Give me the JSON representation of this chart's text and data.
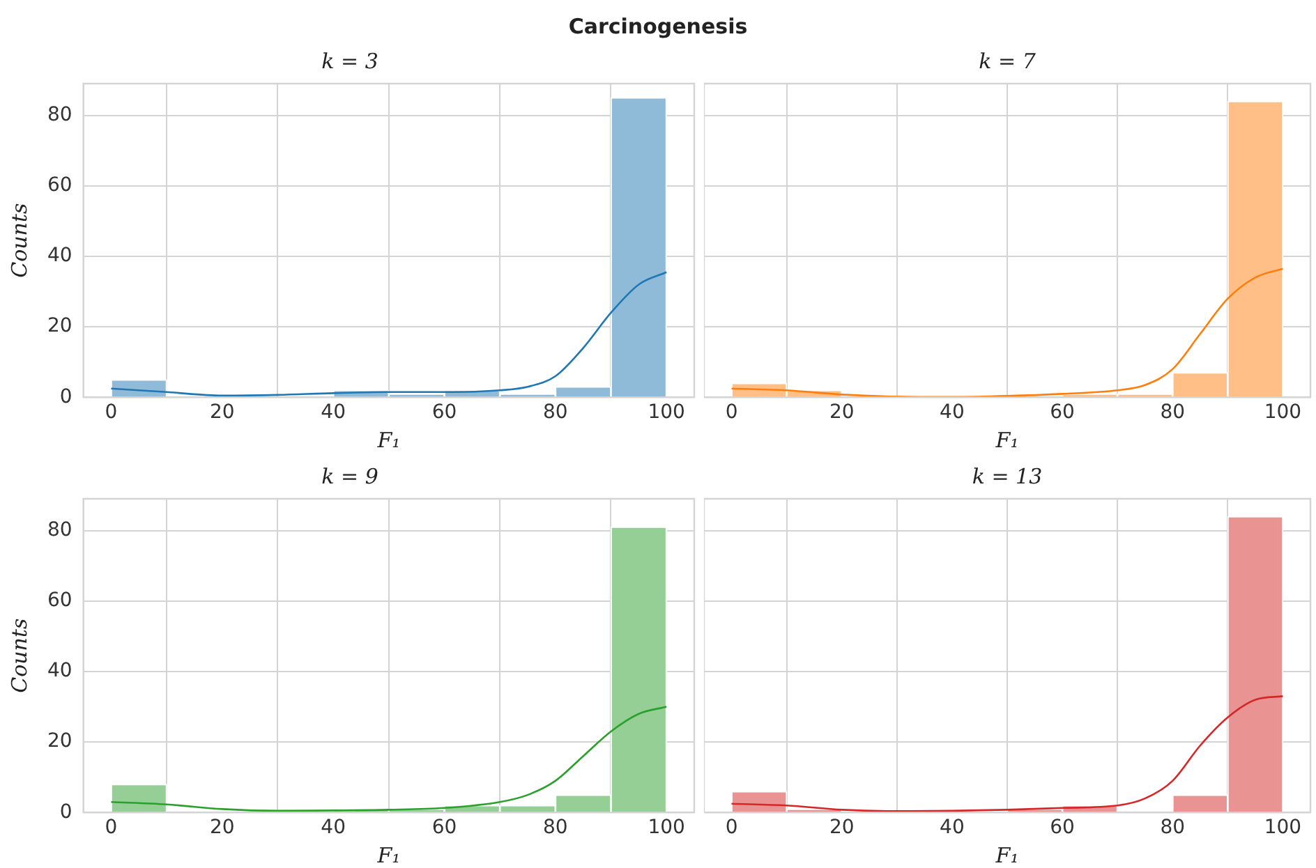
{
  "chart_data": [
    {
      "type": "histogram",
      "title": "Carcinogenesis",
      "subtitle": "k = 3",
      "xlabel": "F₁",
      "ylabel": "Counts",
      "bins": [
        0,
        10,
        20,
        30,
        40,
        50,
        60,
        70,
        80,
        90,
        100
      ],
      "xlim": [
        -5,
        105
      ],
      "ylim": [
        0,
        89
      ],
      "xticks": [
        0,
        20,
        40,
        60,
        80,
        100
      ],
      "yticks": [
        0,
        20,
        40,
        60,
        80
      ],
      "grid": true,
      "legend": false,
      "series": [
        {
          "color": "#8fbbd9",
          "values": [
            5,
            0,
            0,
            0,
            2,
            1,
            2,
            1,
            3,
            85
          ]
        },
        {
          "type": "line",
          "color": "#1f77b4",
          "x": [
            0,
            10,
            20,
            30,
            40,
            50,
            60,
            70,
            75,
            80,
            85,
            90,
            95,
            100
          ],
          "values": [
            2.5,
            1.5,
            0.5,
            0.7,
            1.2,
            1.5,
            1.5,
            2,
            3,
            6,
            14,
            24,
            32,
            35.5
          ]
        }
      ]
    },
    {
      "type": "histogram",
      "subtitle": "k = 7",
      "xlabel": "F₁",
      "bins": [
        0,
        10,
        20,
        30,
        40,
        50,
        60,
        70,
        80,
        90,
        100
      ],
      "xlim": [
        -5,
        105
      ],
      "ylim": [
        0,
        89
      ],
      "xticks": [
        0,
        20,
        40,
        60,
        80,
        100
      ],
      "yticks": [
        0,
        20,
        40,
        60,
        80
      ],
      "grid": true,
      "legend": false,
      "tick_labels": "x",
      "series": [
        {
          "color": "#ffbf87",
          "values": [
            4,
            2,
            0,
            0,
            0,
            0,
            1,
            1,
            7,
            84
          ]
        },
        {
          "type": "line",
          "color": "#ff7f0e",
          "x": [
            0,
            10,
            20,
            30,
            40,
            50,
            60,
            70,
            75,
            80,
            85,
            90,
            95,
            100
          ],
          "values": [
            2.5,
            2,
            0.8,
            0.2,
            0.1,
            0.4,
            1,
            2,
            3.5,
            8,
            18,
            28,
            34,
            36.5
          ]
        }
      ]
    },
    {
      "type": "histogram",
      "subtitle": "k = 9",
      "xlabel": "F₁",
      "ylabel": "Counts",
      "bins": [
        0,
        10,
        20,
        30,
        40,
        50,
        60,
        70,
        80,
        90,
        100
      ],
      "xlim": [
        -5,
        105
      ],
      "ylim": [
        0,
        89
      ],
      "xticks": [
        0,
        20,
        40,
        60,
        80,
        100
      ],
      "yticks": [
        0,
        20,
        40,
        60,
        80
      ],
      "grid": true,
      "legend": false,
      "series": [
        {
          "color": "#95cf95",
          "values": [
            8,
            0,
            0,
            0,
            1,
            1,
            2,
            2,
            5,
            81
          ]
        },
        {
          "type": "line",
          "color": "#2ca02c",
          "x": [
            0,
            10,
            20,
            30,
            40,
            50,
            60,
            70,
            75,
            80,
            85,
            90,
            95,
            100
          ],
          "values": [
            3,
            2.3,
            1,
            0.5,
            0.6,
            0.8,
            1.3,
            3,
            5,
            9,
            16,
            23,
            28,
            30
          ]
        }
      ]
    },
    {
      "type": "histogram",
      "subtitle": "k = 13",
      "xlabel": "F₁",
      "bins": [
        0,
        10,
        20,
        30,
        40,
        50,
        60,
        70,
        80,
        90,
        100
      ],
      "xlim": [
        -5,
        105
      ],
      "ylim": [
        0,
        89
      ],
      "xticks": [
        0,
        20,
        40,
        60,
        80,
        100
      ],
      "yticks": [
        0,
        20,
        40,
        60,
        80
      ],
      "grid": true,
      "legend": false,
      "tick_labels": "x",
      "series": [
        {
          "color": "#ea9393",
          "values": [
            6,
            1,
            0,
            0,
            0,
            1,
            2,
            0,
            5,
            84
          ]
        },
        {
          "type": "line",
          "color": "#d62728",
          "x": [
            0,
            10,
            20,
            30,
            40,
            50,
            60,
            70,
            75,
            80,
            85,
            90,
            95,
            100
          ],
          "values": [
            2.5,
            2,
            0.8,
            0.4,
            0.5,
            0.8,
            1.3,
            2,
            4,
            9,
            19,
            27,
            32,
            33
          ]
        }
      ]
    }
  ]
}
